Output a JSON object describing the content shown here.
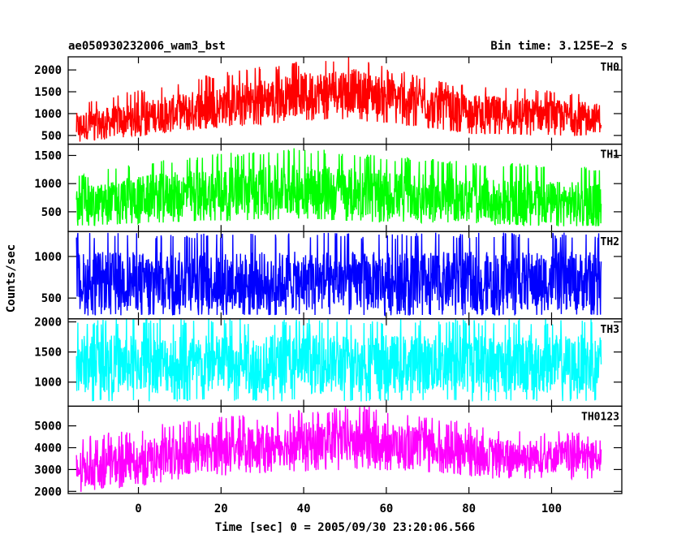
{
  "chart_data": {
    "type": "line",
    "title": "ae050930232006_wam3_bst",
    "subtitle": "Bin time: 3.125E−2 s",
    "xlabel": "Time [sec] 0 = 2005/09/30 23:20:06.566",
    "ylabel": "Counts/sec",
    "xlim": [
      -17,
      117
    ],
    "x_ticks": [
      0,
      20,
      40,
      60,
      80,
      100
    ],
    "x_tick_labels": [
      "0",
      "20",
      "40",
      "60",
      "80",
      "100"
    ],
    "x_data_range": [
      -15,
      112
    ],
    "grid": false,
    "panels": [
      {
        "name": "TH0",
        "color": "#ff0000",
        "ylim": [
          300,
          2300
        ],
        "y_ticks": [
          500,
          1000,
          1500,
          2000
        ],
        "y_tick_labels": [
          "500",
          "1000",
          "1500",
          "2000"
        ],
        "envelope": {
          "x": [
            -15,
            0,
            20,
            40,
            50,
            60,
            80,
            100,
            112
          ],
          "lower": [
            350,
            500,
            700,
            850,
            900,
            800,
            550,
            500,
            500
          ],
          "upper": [
            1200,
            1500,
            1900,
            2150,
            2300,
            2000,
            1600,
            1500,
            1400
          ],
          "mid": [
            700,
            900,
            1200,
            1450,
            1550,
            1400,
            1050,
            950,
            900
          ]
        }
      },
      {
        "name": "TH1",
        "color": "#00ff00",
        "ylim": [
          150,
          1700
        ],
        "y_ticks": [
          500,
          1000,
          1500
        ],
        "y_tick_labels": [
          "500",
          "1000",
          "1500"
        ],
        "envelope": {
          "x": [
            -15,
            0,
            20,
            40,
            60,
            80,
            100,
            112
          ],
          "lower": [
            250,
            300,
            350,
            380,
            320,
            300,
            250,
            250
          ],
          "upper": [
            1100,
            1350,
            1500,
            1600,
            1450,
            1350,
            1300,
            1250
          ],
          "mid": [
            600,
            750,
            850,
            900,
            800,
            700,
            650,
            650
          ]
        }
      },
      {
        "name": "TH2",
        "color": "#0000ff",
        "ylim": [
          250,
          1300
        ],
        "y_ticks": [
          500,
          1000
        ],
        "y_tick_labels": [
          "500",
          "1000"
        ],
        "envelope": {
          "x": [
            -15,
            20,
            60,
            112
          ],
          "lower": [
            300,
            300,
            300,
            300
          ],
          "upper": [
            1250,
            1250,
            1250,
            1250
          ],
          "mid": [
            700,
            700,
            700,
            700
          ]
        }
      },
      {
        "name": "TH3",
        "color": "#00ffff",
        "ylim": [
          600,
          2050
        ],
        "y_ticks": [
          1000,
          1500,
          2000
        ],
        "y_tick_labels": [
          "1000",
          "1500",
          "2000"
        ],
        "envelope": {
          "x": [
            -15,
            20,
            60,
            112
          ],
          "lower": [
            700,
            700,
            700,
            700
          ],
          "upper": [
            2000,
            2000,
            2000,
            2000
          ],
          "mid": [
            1300,
            1300,
            1300,
            1300
          ]
        }
      },
      {
        "name": "TH0123",
        "color": "#ff00ff",
        "ylim": [
          1900,
          5900
        ],
        "y_ticks": [
          2000,
          3000,
          4000,
          5000
        ],
        "y_tick_labels": [
          "2000",
          "3000",
          "4000",
          "5000"
        ],
        "envelope": {
          "x": [
            -15,
            0,
            20,
            40,
            55,
            70,
            90,
            112
          ],
          "lower": [
            2000,
            2300,
            2800,
            3000,
            3100,
            2900,
            2600,
            2600
          ],
          "upper": [
            4300,
            4800,
            5300,
            5600,
            5800,
            5300,
            4700,
            4600
          ],
          "mid": [
            3000,
            3400,
            3900,
            4200,
            4300,
            4000,
            3600,
            3600
          ]
        }
      }
    ]
  }
}
